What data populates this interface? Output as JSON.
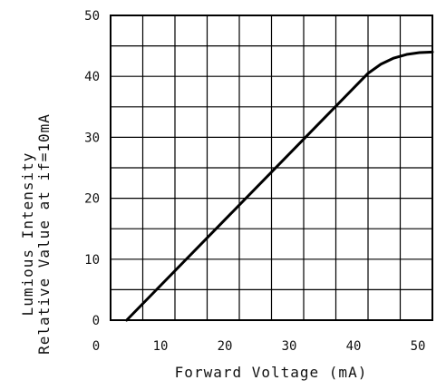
{
  "chart_data": {
    "type": "line",
    "title": "",
    "xlabel": "Forward Voltage (mA)",
    "ylabel_lines": [
      "Lumious Intensity",
      "Relative Value at if=10mA"
    ],
    "xlim": [
      0,
      50
    ],
    "ylim": [
      0,
      50
    ],
    "x_ticks": [
      0,
      10,
      20,
      30,
      40,
      50
    ],
    "y_ticks": [
      0,
      10,
      20,
      30,
      40,
      50
    ],
    "grid": true,
    "minor_grid_step": 5,
    "legend": "none",
    "series": [
      {
        "color": "#000000",
        "x": [
          2.5,
          40,
          42,
          44,
          46,
          48,
          50
        ],
        "y": [
          0,
          40.5,
          42,
          43,
          43.6,
          43.9,
          44
        ]
      }
    ]
  }
}
